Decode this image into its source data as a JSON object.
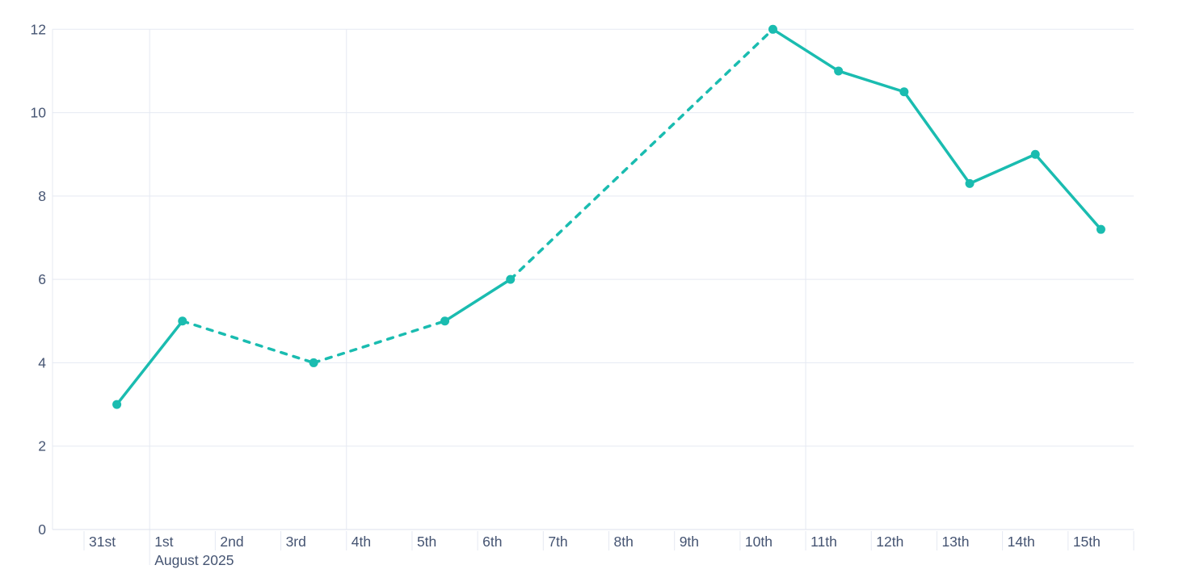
{
  "chart_data": {
    "type": "line",
    "title": "",
    "x_axis": {
      "categories": [
        "31st",
        "1st",
        "2nd",
        "3rd",
        "4th",
        "5th",
        "6th",
        "7th",
        "8th",
        "9th",
        "10th",
        "11th",
        "12th",
        "13th",
        "14th",
        "15th"
      ],
      "month_label": "August 2025",
      "month_boundary_before_category": "1st",
      "week_gridlines_before_categories": [
        "4th",
        "11th"
      ]
    },
    "y_axis": {
      "min": 0,
      "max": 12,
      "tick_interval": 2,
      "tick_labels": [
        "0",
        "2",
        "4",
        "6",
        "8",
        "10",
        "12"
      ],
      "grid": true
    },
    "legend": "none",
    "series": [
      {
        "name": "series-1",
        "color": "#1abcb0",
        "marker": "circle",
        "points": [
          {
            "category": "31st",
            "value": 3,
            "style_to_next": "solid"
          },
          {
            "category": "1st",
            "value": 5,
            "style_to_next": "dashed"
          },
          {
            "category": "3rd",
            "value": 4,
            "style_to_next": "dashed"
          },
          {
            "category": "5th",
            "value": 5,
            "style_to_next": "solid"
          },
          {
            "category": "6th",
            "value": 6,
            "style_to_next": "dashed"
          },
          {
            "category": "10th",
            "value": 12,
            "style_to_next": "solid"
          },
          {
            "category": "11th",
            "value": 11,
            "style_to_next": "solid"
          },
          {
            "category": "12th",
            "value": 10.5,
            "style_to_next": "solid"
          },
          {
            "category": "13th",
            "value": 8.3,
            "style_to_next": "solid"
          },
          {
            "category": "14th",
            "value": 9,
            "style_to_next": "solid"
          },
          {
            "category": "15th",
            "value": 7.2,
            "style_to_next": "none"
          }
        ]
      }
    ],
    "colors": {
      "line": "#1abcb0",
      "grid_line": "#e5e9f2",
      "axis_line": "#dde2ee",
      "label": "#455472",
      "background": "#ffffff"
    }
  }
}
